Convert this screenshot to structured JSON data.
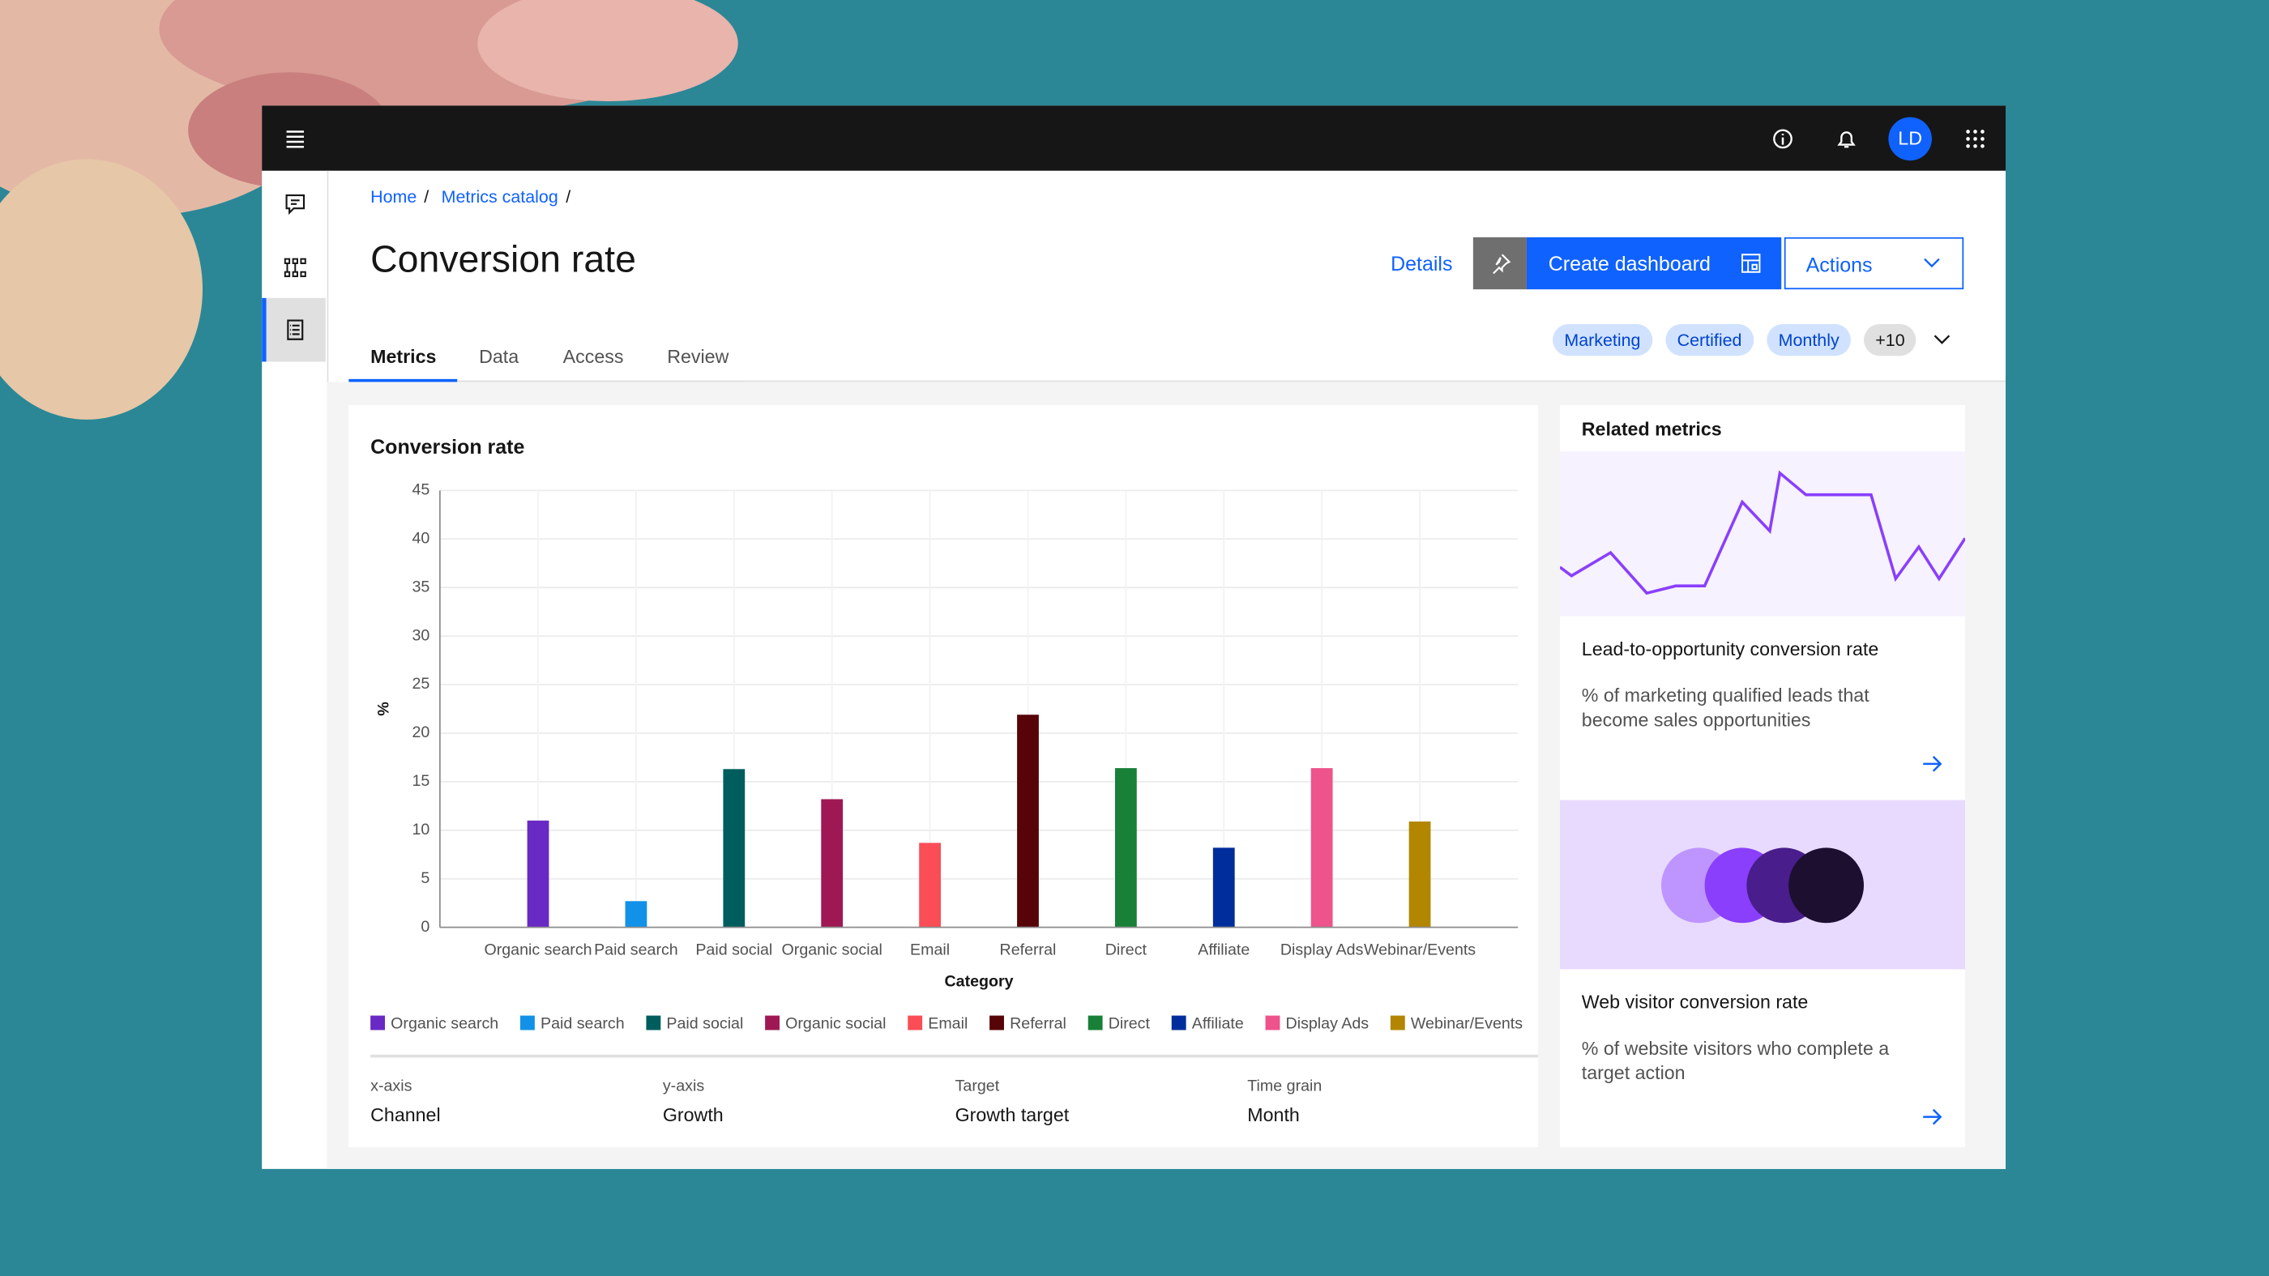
{
  "breadcrumbs": [
    "Home",
    "Metrics catalog"
  ],
  "title": "Conversion rate",
  "header_actions": {
    "details": "Details",
    "create": "Create dashboard",
    "actions": "Actions"
  },
  "user_initials": "LD",
  "tabs": [
    "Metrics",
    "Data",
    "Access",
    "Review"
  ],
  "tags": [
    "Marketing",
    "Certified",
    "Monthly",
    "+10"
  ],
  "chart_data": {
    "type": "bar",
    "title": "Conversion rate",
    "x_label": "Category",
    "y_label": "%",
    "categories": [
      "Organic search",
      "Paid search",
      "Paid social",
      "Organic social",
      "Email",
      "Referral",
      "Direct",
      "Affiliate",
      "Display Ads",
      "Webinar/Events"
    ],
    "values": [
      11,
      2.7,
      16.3,
      13.2,
      8.7,
      21.9,
      16.4,
      8.2,
      16.4,
      10.9
    ],
    "colors": [
      "#6929c4",
      "#1192e8",
      "#005d5d",
      "#9f1853",
      "#fa4d56",
      "#570408",
      "#198038",
      "#002d9c",
      "#ee538b",
      "#b28600"
    ],
    "ylim": [
      0,
      45
    ],
    "yticks": [
      0,
      5,
      10,
      15,
      20,
      25,
      30,
      35,
      40,
      45
    ],
    "grid": true
  },
  "chart_meta": [
    {
      "label": "x-axis",
      "value": "Channel"
    },
    {
      "label": "y-axis",
      "value": "Growth"
    },
    {
      "label": "Target",
      "value": "Growth target"
    },
    {
      "label": "Time grain",
      "value": "Month"
    }
  ],
  "related": {
    "title": "Related metrics",
    "items": [
      {
        "name": "Lead-to-opportunity conversion rate",
        "description": "% of marketing qualified leads that become sales opportunities"
      },
      {
        "name": "Web visitor conversion rate",
        "description": "% of website visitors who complete a target action"
      }
    ]
  }
}
